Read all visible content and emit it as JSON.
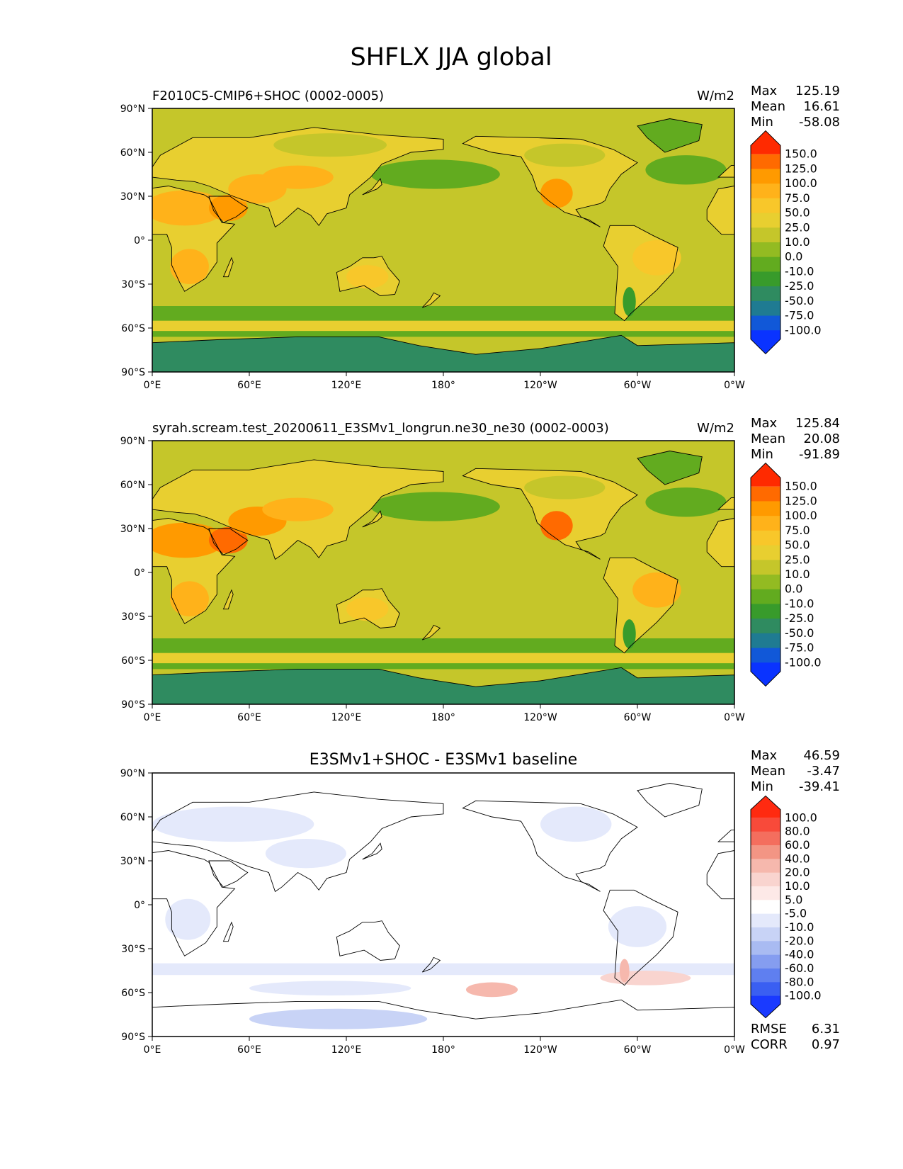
{
  "figure": {
    "title": "SHFLX JJA global"
  },
  "axes_ticks": {
    "lat": [
      "90°N",
      "60°N",
      "30°N",
      "0°",
      "30°S",
      "60°S",
      "90°S"
    ],
    "lon": [
      "0°E",
      "60°E",
      "120°E",
      "180°",
      "120°W",
      "60°W",
      "0°W"
    ]
  },
  "chart_data": [
    {
      "type": "heatmap",
      "title": "F2010C5-CMIP6+SHOC (0002-0005)",
      "units": "W/m2",
      "stats": {
        "max_label": "Max",
        "max": "125.19",
        "mean_label": "Mean",
        "mean": "16.61",
        "min_label": "Min",
        "min": "-58.08"
      },
      "xlim": [
        0,
        360
      ],
      "ylim": [
        -90,
        90
      ],
      "colorbar": {
        "levels": [
          "150.0",
          "125.0",
          "100.0",
          "75.0",
          "50.0",
          "25.0",
          "10.0",
          "0.0",
          "-10.0",
          "-25.0",
          "-50.0",
          "-75.0",
          "-100.0"
        ],
        "colors": [
          "#ff2a00",
          "#ff6a00",
          "#ff9a00",
          "#ffb21a",
          "#f8c72a",
          "#e8cf30",
          "#c5c62a",
          "#93bb22",
          "#62ab1f",
          "#389b2b",
          "#2f8b60",
          "#1f7b92",
          "#1158d8",
          "#0a33ff"
        ]
      },
      "field": {
        "ocean_value": 10.0,
        "southern_ocean_value": -10.0,
        "antarctica_value": -50.0,
        "land_values": {
          "sahara_arabia": 100.0,
          "north_america_southwest": 100.0,
          "south_america": 50.0,
          "australia": 50.0,
          "siberia": 10.0,
          "greenland": -10.0
        }
      }
    },
    {
      "type": "heatmap",
      "title": "syrah.scream.test_20200611_E3SMv1_longrun.ne30_ne30 (0002-0003)",
      "units": "W/m2",
      "stats": {
        "max_label": "Max",
        "max": "125.84",
        "mean_label": "Mean",
        "mean": "20.08",
        "min_label": "Min",
        "min": "-91.89"
      },
      "xlim": [
        0,
        360
      ],
      "ylim": [
        -90,
        90
      ],
      "colorbar": {
        "levels": [
          "150.0",
          "125.0",
          "100.0",
          "75.0",
          "50.0",
          "25.0",
          "10.0",
          "0.0",
          "-10.0",
          "-25.0",
          "-50.0",
          "-75.0",
          "-100.0"
        ],
        "colors": [
          "#ff2a00",
          "#ff6a00",
          "#ff9a00",
          "#ffb21a",
          "#f8c72a",
          "#e8cf30",
          "#c5c62a",
          "#93bb22",
          "#62ab1f",
          "#389b2b",
          "#2f8b60",
          "#1f7b92",
          "#1158d8",
          "#0a33ff"
        ]
      },
      "field": {
        "ocean_value": 10.0,
        "southern_ocean_value": -10.0,
        "antarctica_value": -50.0,
        "land_values": {
          "sahara_arabia": 125.0,
          "north_america_southwest": 125.0,
          "south_america": 75.0,
          "australia": 50.0,
          "siberia": 25.0,
          "greenland": -10.0
        }
      }
    },
    {
      "type": "heatmap",
      "title": "E3SMv1+SHOC - E3SMv1 baseline",
      "units": "",
      "stats": {
        "max_label": "Max",
        "max": "46.59",
        "mean_label": "Mean",
        "mean": "-3.47",
        "min_label": "Min",
        "min": "-39.41",
        "rmse_label": "RMSE",
        "rmse": "6.31",
        "corr_label": "CORR",
        "corr": "0.97"
      },
      "xlim": [
        0,
        360
      ],
      "ylim": [
        -90,
        90
      ],
      "colorbar": {
        "levels": [
          "100.0",
          "80.0",
          "60.0",
          "40.0",
          "20.0",
          "10.0",
          "5.0",
          "-5.0",
          "-10.0",
          "-20.0",
          "-40.0",
          "-60.0",
          "-80.0",
          "-100.0"
        ],
        "colors": [
          "#ff2a10",
          "#f84a3a",
          "#f46e5e",
          "#f39584",
          "#f6b8ad",
          "#f9d4cf",
          "#fde9e7",
          "#ffffff",
          "#e4e9fb",
          "#c8d3f6",
          "#a9bbf2",
          "#859df0",
          "#5f7ff0",
          "#3a5ff2",
          "#1a3aff"
        ]
      },
      "field": {
        "ocean_value": 0.0,
        "land_values": {
          "eurasia": -10.0,
          "north_america_east": -10.0,
          "south_america": -10.0,
          "southern_ocean_band": -10.0,
          "pacific_south_60S": 20.0,
          "argentina": 20.0
        }
      }
    }
  ]
}
